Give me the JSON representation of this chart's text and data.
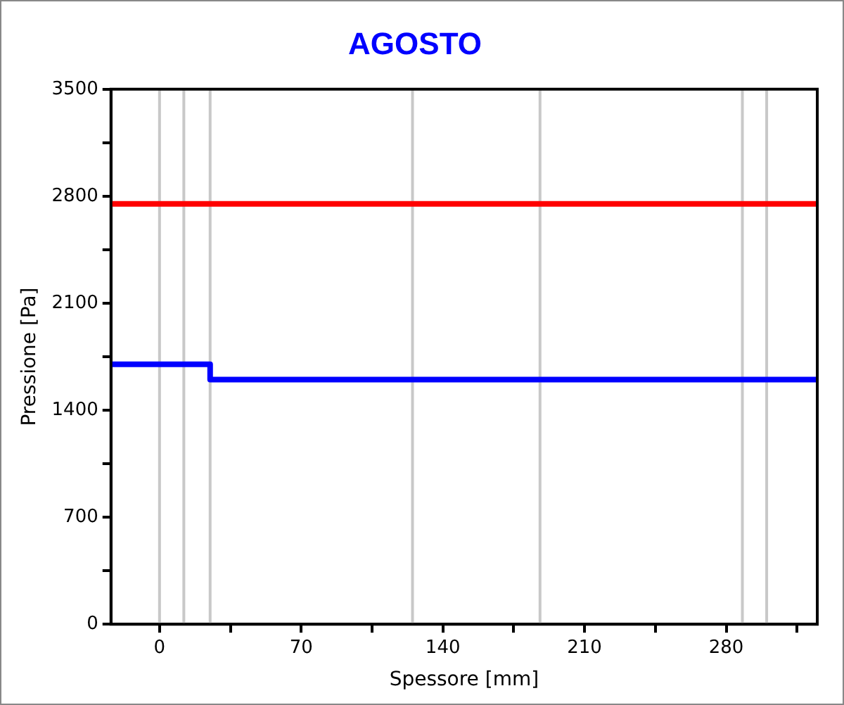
{
  "chart_data": {
    "type": "line",
    "title": "AGOSTO",
    "xlabel": "Spessore [mm]",
    "ylabel": "Pressione [Pa]",
    "xlim": [
      -24,
      325
    ],
    "xticks": [
      0,
      {
        "value": 35,
        "label": null
      },
      70,
      {
        "value": 105,
        "label": null
      },
      140,
      {
        "value": 175,
        "label": null
      },
      210,
      {
        "value": 245,
        "label": null
      },
      280,
      {
        "value": 315,
        "label": null
      }
    ],
    "ylim": [
      0,
      3500
    ],
    "yticks": [
      0,
      {
        "value": 350,
        "label": null
      },
      700,
      {
        "value": 1050,
        "label": null
      },
      1400,
      {
        "value": 1750,
        "label": null
      },
      2100,
      {
        "value": 2450,
        "label": null
      },
      2800,
      {
        "value": 3150,
        "label": null
      },
      3500
    ],
    "grid": false,
    "legend": false,
    "marker": "none",
    "line_style": "solid",
    "series": [
      {
        "color": "#ff0000",
        "x": [
          -24,
          325
        ],
        "values": [
          2750,
          2750
        ]
      },
      {
        "color": "#0000ff",
        "x": [
          -24,
          25,
          25,
          325
        ],
        "values": [
          1700,
          1700,
          1600,
          1600
        ]
      }
    ],
    "ref_lines": [
      {
        "axis": "x",
        "value": 0,
        "color": "#c8c8c8"
      },
      {
        "axis": "x",
        "value": 12,
        "color": "#c8c8c8"
      },
      {
        "axis": "x",
        "value": 25,
        "color": "#c8c8c8"
      },
      {
        "axis": "x",
        "value": 125,
        "color": "#c8c8c8"
      },
      {
        "axis": "x",
        "value": 188,
        "color": "#c8c8c8"
      },
      {
        "axis": "x",
        "value": 288,
        "color": "#c8c8c8"
      },
      {
        "axis": "x",
        "value": 300,
        "color": "#c8c8c8"
      }
    ]
  }
}
